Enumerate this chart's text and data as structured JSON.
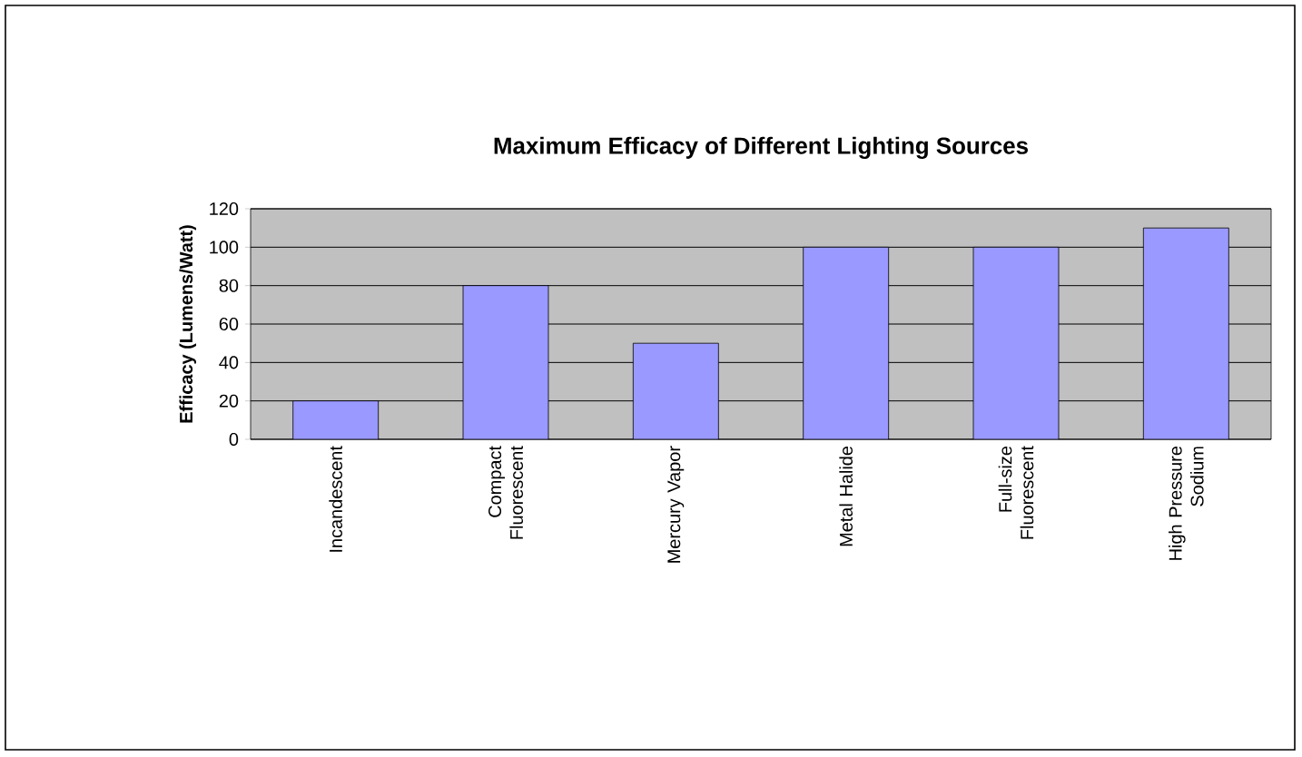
{
  "chart_data": {
    "type": "bar",
    "title": "Maximum Efficacy of Different Lighting Sources",
    "ylabel": "Efficacy (Lumens/Watt)",
    "categories": [
      "Incandescent",
      "Compact Fluorescent",
      "Mercury Vapor",
      "Metal Halide",
      "Full-size Fluorescent",
      "High Pressure Sodium"
    ],
    "values": [
      20,
      80,
      50,
      100,
      100,
      110
    ],
    "color": "#9999ff",
    "ylim": [
      0,
      120
    ],
    "yticks": [
      0,
      20,
      40,
      60,
      80,
      100,
      120
    ],
    "grid": "y"
  }
}
